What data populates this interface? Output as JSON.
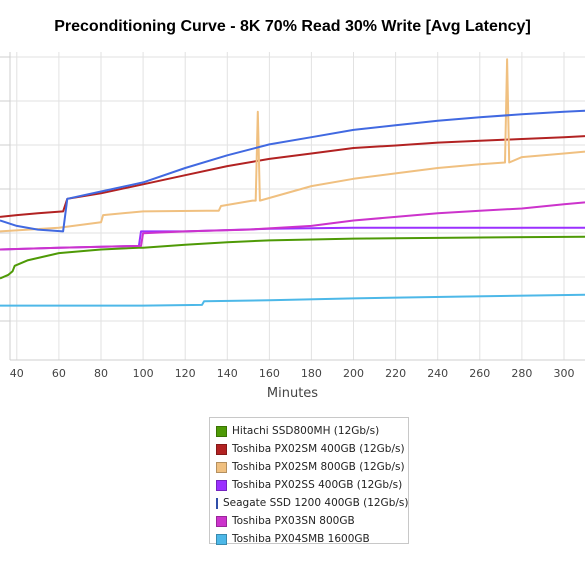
{
  "chart_data": {
    "type": "line",
    "title": "Preconditioning Curve - 8K 70% Read 30% Write [Avg Latency]",
    "xlabel": "Minutes",
    "ylabel": "",
    "xlim": [
      32,
      310
    ],
    "ylim": [
      -0.5,
      8.0
    ],
    "x_ticks": [
      40,
      60,
      80,
      100,
      120,
      140,
      160,
      180,
      200,
      220,
      240,
      260,
      280,
      300
    ],
    "grid": true,
    "legend_position": "bottom",
    "series": [
      {
        "name": "Hitachi SSD800MH (12Gb/s)",
        "color": "#4e9a06",
        "points": [
          [
            32,
            1.75
          ],
          [
            36,
            1.85
          ],
          [
            38,
            1.95
          ],
          [
            39,
            2.1
          ],
          [
            45,
            2.25
          ],
          [
            60,
            2.45
          ],
          [
            80,
            2.55
          ],
          [
            98,
            2.6
          ],
          [
            100,
            2.6
          ],
          [
            120,
            2.68
          ],
          [
            140,
            2.75
          ],
          [
            160,
            2.8
          ],
          [
            200,
            2.85
          ],
          [
            260,
            2.88
          ],
          [
            310,
            2.9
          ]
        ]
      },
      {
        "name": "Toshiba PX02SM 400GB (12Gb/s)",
        "color": "#b22222",
        "points": [
          [
            32,
            3.45
          ],
          [
            40,
            3.5
          ],
          [
            50,
            3.55
          ],
          [
            62,
            3.6
          ],
          [
            64,
            3.95
          ],
          [
            80,
            4.1
          ],
          [
            100,
            4.35
          ],
          [
            120,
            4.6
          ],
          [
            140,
            4.85
          ],
          [
            160,
            5.05
          ],
          [
            180,
            5.2
          ],
          [
            200,
            5.35
          ],
          [
            220,
            5.42
          ],
          [
            240,
            5.5
          ],
          [
            260,
            5.55
          ],
          [
            280,
            5.6
          ],
          [
            300,
            5.65
          ],
          [
            310,
            5.68
          ]
        ]
      },
      {
        "name": "Toshiba PX02SM 800GB (12Gb/s)",
        "color": "#f0c080",
        "points": [
          [
            32,
            3.05
          ],
          [
            60,
            3.15
          ],
          [
            80,
            3.3
          ],
          [
            81,
            3.5
          ],
          [
            100,
            3.6
          ],
          [
            130,
            3.62
          ],
          [
            136,
            3.62
          ],
          [
            137,
            3.75
          ],
          [
            152,
            3.9
          ],
          [
            153.5,
            3.9
          ],
          [
            154.5,
            6.35
          ],
          [
            155.5,
            3.9
          ],
          [
            180,
            4.3
          ],
          [
            200,
            4.5
          ],
          [
            220,
            4.65
          ],
          [
            240,
            4.8
          ],
          [
            260,
            4.9
          ],
          [
            272,
            4.95
          ],
          [
            273,
            7.8
          ],
          [
            274,
            4.95
          ],
          [
            280,
            5.1
          ],
          [
            300,
            5.2
          ],
          [
            310,
            5.25
          ]
        ]
      },
      {
        "name": "Toshiba PX02SS 400GB (12Gb/s)",
        "color": "#9b30ff",
        "points": [
          [
            32,
            2.55
          ],
          [
            60,
            2.6
          ],
          [
            98,
            2.65
          ],
          [
            99,
            3.05
          ],
          [
            120,
            3.05
          ],
          [
            160,
            3.12
          ],
          [
            200,
            3.15
          ],
          [
            250,
            3.15
          ],
          [
            310,
            3.15
          ]
        ]
      },
      {
        "name": "Seagate SSD 1200 400GB (12Gb/s)",
        "color": "#4169e1",
        "points": [
          [
            32,
            3.35
          ],
          [
            40,
            3.2
          ],
          [
            50,
            3.1
          ],
          [
            62,
            3.05
          ],
          [
            64,
            3.95
          ],
          [
            80,
            4.15
          ],
          [
            100,
            4.4
          ],
          [
            120,
            4.8
          ],
          [
            140,
            5.15
          ],
          [
            160,
            5.45
          ],
          [
            180,
            5.65
          ],
          [
            200,
            5.85
          ],
          [
            220,
            5.98
          ],
          [
            240,
            6.1
          ],
          [
            260,
            6.2
          ],
          [
            280,
            6.28
          ],
          [
            300,
            6.35
          ],
          [
            310,
            6.38
          ]
        ]
      },
      {
        "name": "Toshiba PX03SN 800GB",
        "color": "#cc33cc",
        "points": [
          [
            32,
            2.55
          ],
          [
            60,
            2.6
          ],
          [
            99,
            2.65
          ],
          [
            100,
            3.0
          ],
          [
            120,
            3.05
          ],
          [
            150,
            3.1
          ],
          [
            180,
            3.2
          ],
          [
            200,
            3.35
          ],
          [
            220,
            3.45
          ],
          [
            240,
            3.55
          ],
          [
            260,
            3.62
          ],
          [
            280,
            3.68
          ],
          [
            300,
            3.8
          ],
          [
            310,
            3.85
          ]
        ]
      },
      {
        "name": "Toshiba PX04SMB 1600GB",
        "color": "#4db8e8",
        "points": [
          [
            32,
            1.0
          ],
          [
            100,
            1.0
          ],
          [
            128,
            1.02
          ],
          [
            129,
            1.12
          ],
          [
            160,
            1.15
          ],
          [
            200,
            1.2
          ],
          [
            250,
            1.25
          ],
          [
            310,
            1.3
          ]
        ]
      }
    ]
  }
}
